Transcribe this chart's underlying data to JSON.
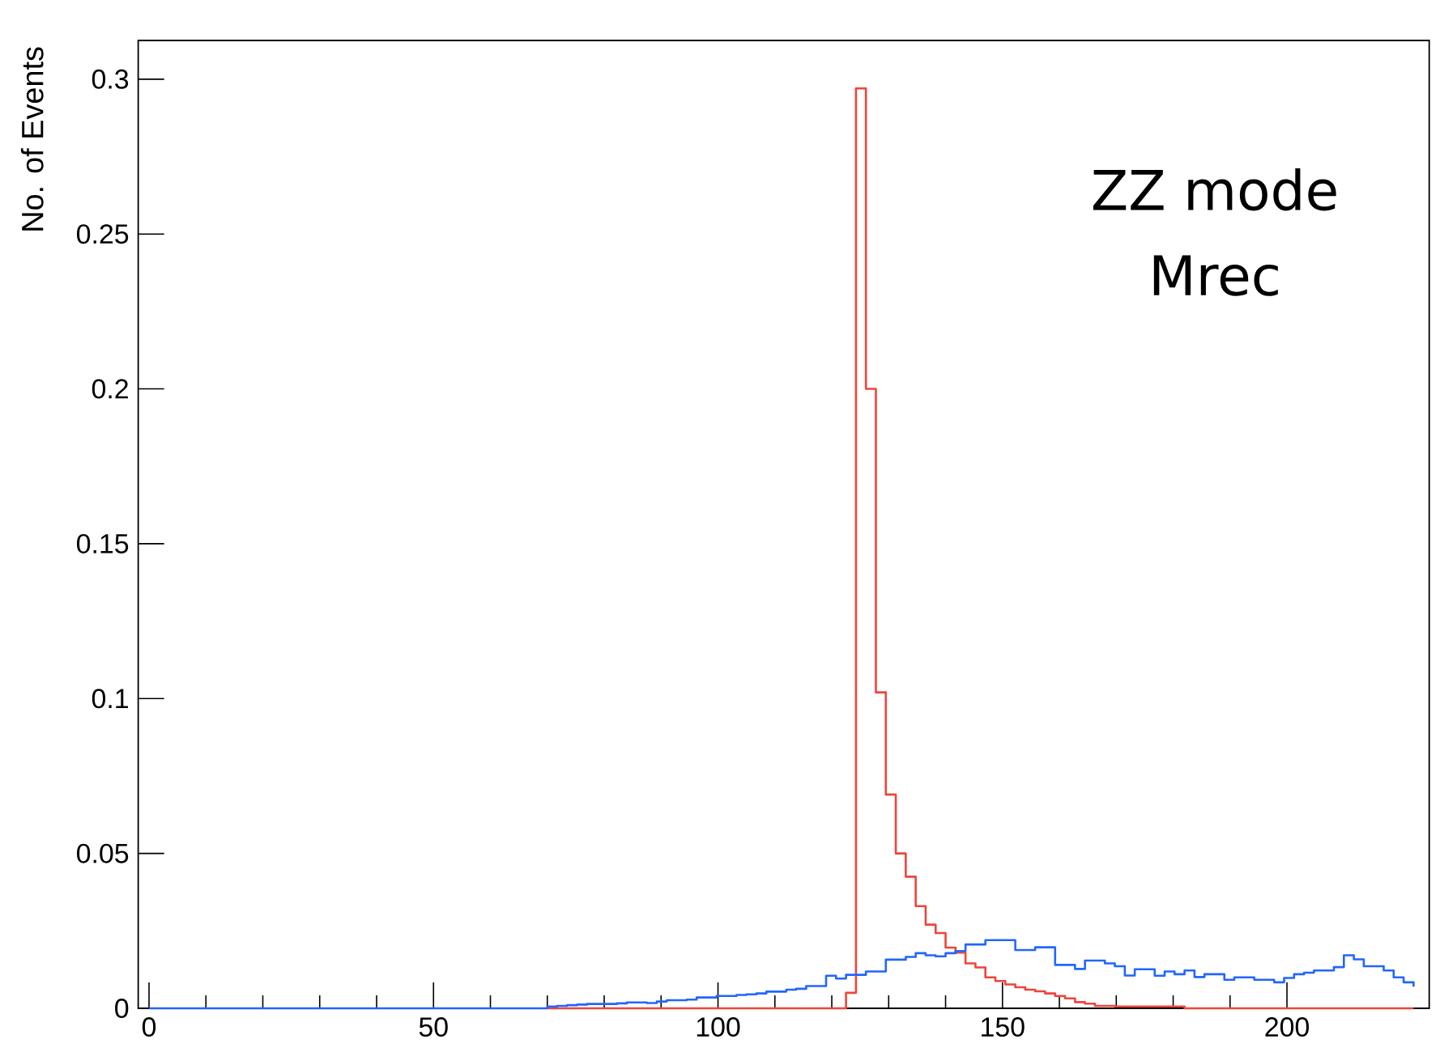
{
  "chart_data": {
    "type": "step",
    "ylabel": "No. of Events",
    "annotations": [
      "ZZ mode",
      "Mrec"
    ],
    "xlim": [
      -1.9,
      225
    ],
    "ylim": [
      0,
      0.3125
    ],
    "xticks": [
      0,
      50,
      100,
      150,
      200
    ],
    "yticks": [
      0,
      0.05,
      0.1,
      0.15,
      0.2,
      0.25,
      0.3
    ],
    "x": [
      0,
      1.75,
      3.5,
      5.25,
      7,
      8.75,
      10.5,
      12.25,
      14,
      15.75,
      17.5,
      19.25,
      21,
      22.75,
      24.5,
      26.25,
      28,
      29.75,
      31.5,
      33.25,
      35,
      36.75,
      38.5,
      40.25,
      42,
      43.75,
      45.5,
      47.25,
      49,
      50.75,
      52.5,
      54.25,
      56,
      57.75,
      59.5,
      61.25,
      63,
      64.75,
      66.5,
      68.25,
      70,
      71.75,
      73.5,
      75.25,
      77,
      78.75,
      80.5,
      82.25,
      84,
      85.75,
      87.5,
      89.25,
      91,
      92.75,
      94.5,
      96.25,
      98,
      99.75,
      101.5,
      103.25,
      105,
      106.75,
      108.5,
      110.25,
      112,
      113.75,
      115.5,
      117.25,
      119,
      120.75,
      122.5,
      124.25,
      126,
      127.75,
      129.5,
      131.25,
      133,
      134.75,
      136.5,
      138.25,
      140,
      141.75,
      143.5,
      145.25,
      147,
      148.75,
      150.5,
      152.25,
      154,
      155.75,
      157.5,
      159.25,
      161,
      162.75,
      164.5,
      166.25,
      168,
      169.75,
      171.5,
      173.25,
      175,
      176.75,
      178.5,
      180.25,
      182,
      183.75,
      185.5,
      187.25,
      189,
      190.75,
      192.5,
      194.25,
      196,
      197.75,
      199.5,
      201.25,
      203,
      204.75,
      206.5,
      208.25,
      210,
      211.75,
      213.5,
      215.25,
      217,
      218.75,
      220.5,
      222.25
    ],
    "series": [
      {
        "color": "#f0443a",
        "values": [
          null,
          null,
          null,
          null,
          null,
          null,
          null,
          null,
          null,
          null,
          null,
          null,
          null,
          null,
          null,
          null,
          null,
          null,
          null,
          null,
          null,
          null,
          null,
          null,
          null,
          null,
          null,
          null,
          null,
          null,
          null,
          null,
          null,
          null,
          null,
          null,
          null,
          null,
          null,
          null,
          0,
          0,
          0,
          0,
          0,
          0,
          0,
          0,
          0,
          0,
          0,
          0,
          0,
          0,
          0,
          0,
          0,
          0,
          0,
          0,
          0,
          0,
          0,
          0,
          0,
          0,
          0,
          0,
          0,
          0,
          0.005,
          0.297,
          0.2,
          0.102,
          0.069,
          0.05,
          0.0425,
          0.033,
          0.027,
          0.0243,
          0.0196,
          0.018,
          0.0145,
          0.0132,
          0.01,
          0.0088,
          0.0077,
          0.0068,
          0.006,
          0.0055,
          0.0048,
          0.004,
          0.0032,
          0.002,
          0.0015,
          0.0008,
          0.0008,
          0.0006,
          0.0006,
          0.0006,
          0.0006,
          0.0006,
          0.0006,
          0.0006,
          0,
          0,
          0,
          0,
          0,
          0,
          0,
          0,
          0,
          0,
          0,
          0,
          0,
          0,
          0,
          0,
          0,
          0,
          0,
          0,
          0,
          0,
          0,
          0
        ]
      },
      {
        "color": "#2266ff",
        "values": [
          0,
          0,
          0,
          0,
          0,
          0,
          0,
          0,
          0,
          0,
          0,
          0,
          0,
          0,
          0,
          0,
          0,
          0,
          0,
          0,
          0,
          0,
          0,
          0,
          0,
          0,
          0,
          0,
          0,
          0,
          0,
          0,
          0,
          0,
          0,
          0,
          0,
          0,
          0,
          0,
          0.0006,
          0.0008,
          0.001,
          0.0012,
          0.0014,
          0.0014,
          0.0014,
          0.0016,
          0.0019,
          0.0019,
          0.0017,
          0.0022,
          0.0026,
          0.0026,
          0.0028,
          0.0035,
          0.0035,
          0.004,
          0.004,
          0.0043,
          0.0045,
          0.0048,
          0.0054,
          0.0054,
          0.006,
          0.0063,
          0.0072,
          0.0072,
          0.0105,
          0.0096,
          0.0108,
          0.0108,
          0.0119,
          0.0119,
          0.0157,
          0.0157,
          0.0166,
          0.0178,
          0.0171,
          0.0168,
          0.0178,
          0.0185,
          0.0206,
          0.0206,
          0.022,
          0.022,
          0.022,
          0.0188,
          0.0188,
          0.0197,
          0.0197,
          0.014,
          0.014,
          0.0127,
          0.0154,
          0.0154,
          0.0145,
          0.0136,
          0.0106,
          0.0126,
          0.0126,
          0.0105,
          0.0119,
          0.011,
          0.0122,
          0.0101,
          0.011,
          0.011,
          0.0092,
          0.01,
          0.01,
          0.0092,
          0.0092,
          0.0084,
          0.0098,
          0.011,
          0.0115,
          0.0122,
          0.0122,
          0.0133,
          0.0171,
          0.0158,
          0.0136,
          0.0136,
          0.0122,
          0.01,
          0.0084,
          0.007
        ]
      }
    ]
  }
}
